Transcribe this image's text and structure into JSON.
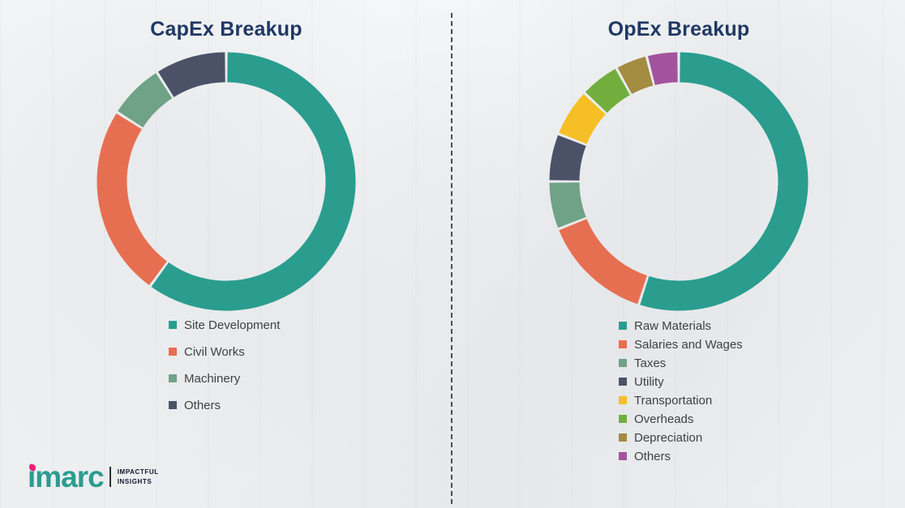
{
  "chart_data": [
    {
      "type": "pie",
      "variant": "donut",
      "title": "CapEx Breakup",
      "legend_position": "bottom-left",
      "segments": [
        {
          "label": "Site Development",
          "value": 60,
          "color": "#2a9d8f"
        },
        {
          "label": "Civil Works",
          "value": 24,
          "color": "#e76f51"
        },
        {
          "label": "Machinery",
          "value": 7,
          "color": "#6fa287"
        },
        {
          "label": "Others",
          "value": 9,
          "color": "#4b5268"
        }
      ]
    },
    {
      "type": "pie",
      "variant": "donut",
      "title": "OpEx Breakup",
      "legend_position": "bottom-left",
      "segments": [
        {
          "label": "Raw Materials",
          "value": 55,
          "color": "#2a9d8f"
        },
        {
          "label": "Salaries and Wages",
          "value": 14,
          "color": "#e76f51"
        },
        {
          "label": "Taxes",
          "value": 6,
          "color": "#6fa287"
        },
        {
          "label": "Utility",
          "value": 6,
          "color": "#4b5268"
        },
        {
          "label": "Transportation",
          "value": 6,
          "color": "#f6bf26"
        },
        {
          "label": "Overheads",
          "value": 5,
          "color": "#72ae3e"
        },
        {
          "label": "Depreciation",
          "value": 4,
          "color": "#a38b3f"
        },
        {
          "label": "Others",
          "value": 4,
          "color": "#a3539e"
        }
      ]
    }
  ],
  "logo": {
    "wordmark": "imarc",
    "tagline": [
      "IMPACTFUL",
      "INSIGHTS"
    ]
  },
  "colors": {
    "title": "#1f3864",
    "legend_text": "#404040",
    "brand_teal": "#2a9d8f",
    "brand_pink": "#ec1e79"
  }
}
